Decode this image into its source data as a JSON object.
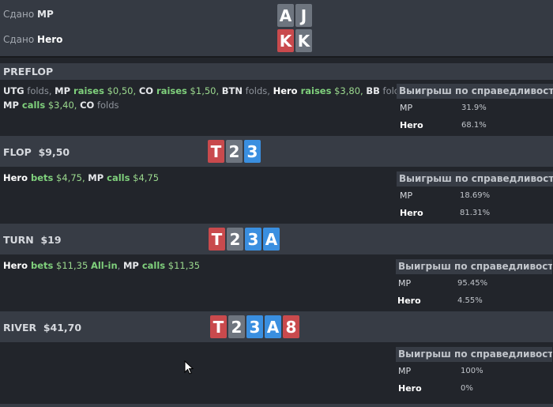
{
  "dealt": {
    "mp": {
      "prefix": "Сдано",
      "name": "MP",
      "cards": [
        {
          "r": "A",
          "c": "gray"
        },
        {
          "r": "J",
          "c": "gray"
        }
      ]
    },
    "hero": {
      "prefix": "Сдано",
      "name": "Hero",
      "cards": [
        {
          "r": "K",
          "c": "red"
        },
        {
          "r": "K",
          "c": "gray"
        }
      ]
    }
  },
  "equity_header": "Выигрыш по справедливости",
  "preflop": {
    "title": "PREFLOP",
    "line1": [
      {
        "t": "UTG",
        "s": "p"
      },
      {
        "t": " folds, ",
        "s": "n"
      },
      {
        "t": "MP",
        "s": "p"
      },
      {
        "t": " raises",
        "s": "g"
      },
      {
        "t": " $0,50, ",
        "s": "gn"
      },
      {
        "t": "CO",
        "s": "p"
      },
      {
        "t": " raises",
        "s": "g"
      },
      {
        "t": " $1,50, ",
        "s": "gn"
      },
      {
        "t": "BTN",
        "s": "p"
      },
      {
        "t": " folds, ",
        "s": "n"
      },
      {
        "t": "Hero",
        "s": "hero"
      },
      {
        "t": " raises",
        "s": "g"
      },
      {
        "t": " $3,80, ",
        "s": "gn"
      },
      {
        "t": "BB",
        "s": "p"
      },
      {
        "t": " folds,",
        "s": "n"
      }
    ],
    "line2": [
      {
        "t": "MP",
        "s": "p"
      },
      {
        "t": " calls",
        "s": "g"
      },
      {
        "t": " $3,40, ",
        "s": "gn"
      },
      {
        "t": "CO",
        "s": "p"
      },
      {
        "t": " folds",
        "s": "n"
      }
    ],
    "equity": [
      {
        "name": "MP",
        "value": "31.9%"
      },
      {
        "name": "Hero",
        "value": "68.1%"
      }
    ]
  },
  "flop": {
    "title": "FLOP",
    "pot": "$9,50",
    "board": [
      {
        "r": "T",
        "c": "red"
      },
      {
        "r": "2",
        "c": "gray"
      },
      {
        "r": "3",
        "c": "blue"
      }
    ],
    "line1": [
      {
        "t": "Hero",
        "s": "hero"
      },
      {
        "t": " bets",
        "s": "g"
      },
      {
        "t": " $4,75, ",
        "s": "gn"
      },
      {
        "t": "MP",
        "s": "p"
      },
      {
        "t": " calls",
        "s": "g"
      },
      {
        "t": " $4,75",
        "s": "gn"
      }
    ],
    "equity": [
      {
        "name": "MP",
        "value": "18.69%"
      },
      {
        "name": "Hero",
        "value": "81.31%"
      }
    ]
  },
  "turn": {
    "title": "TURN",
    "pot": "$19",
    "board": [
      {
        "r": "T",
        "c": "red"
      },
      {
        "r": "2",
        "c": "gray"
      },
      {
        "r": "3",
        "c": "blue"
      },
      {
        "r": "A",
        "c": "blue"
      }
    ],
    "line1": [
      {
        "t": "Hero",
        "s": "hero"
      },
      {
        "t": " bets",
        "s": "g"
      },
      {
        "t": " $11,35 ",
        "s": "gn"
      },
      {
        "t": "All-in",
        "s": "g"
      },
      {
        "t": ", ",
        "s": "n"
      },
      {
        "t": "MP",
        "s": "p"
      },
      {
        "t": " calls",
        "s": "g"
      },
      {
        "t": " $11,35",
        "s": "gn"
      }
    ],
    "equity": [
      {
        "name": "MP",
        "value": "95.45%"
      },
      {
        "name": "Hero",
        "value": "4.55%"
      }
    ]
  },
  "river": {
    "title": "RIVER",
    "pot": "$41,70",
    "board": [
      {
        "r": "T",
        "c": "red"
      },
      {
        "r": "2",
        "c": "gray"
      },
      {
        "r": "3",
        "c": "blue"
      },
      {
        "r": "A",
        "c": "blue"
      },
      {
        "r": "8",
        "c": "red"
      }
    ],
    "equity": [
      {
        "name": "MP",
        "value": "100%"
      },
      {
        "name": "Hero",
        "value": "0%"
      }
    ]
  }
}
